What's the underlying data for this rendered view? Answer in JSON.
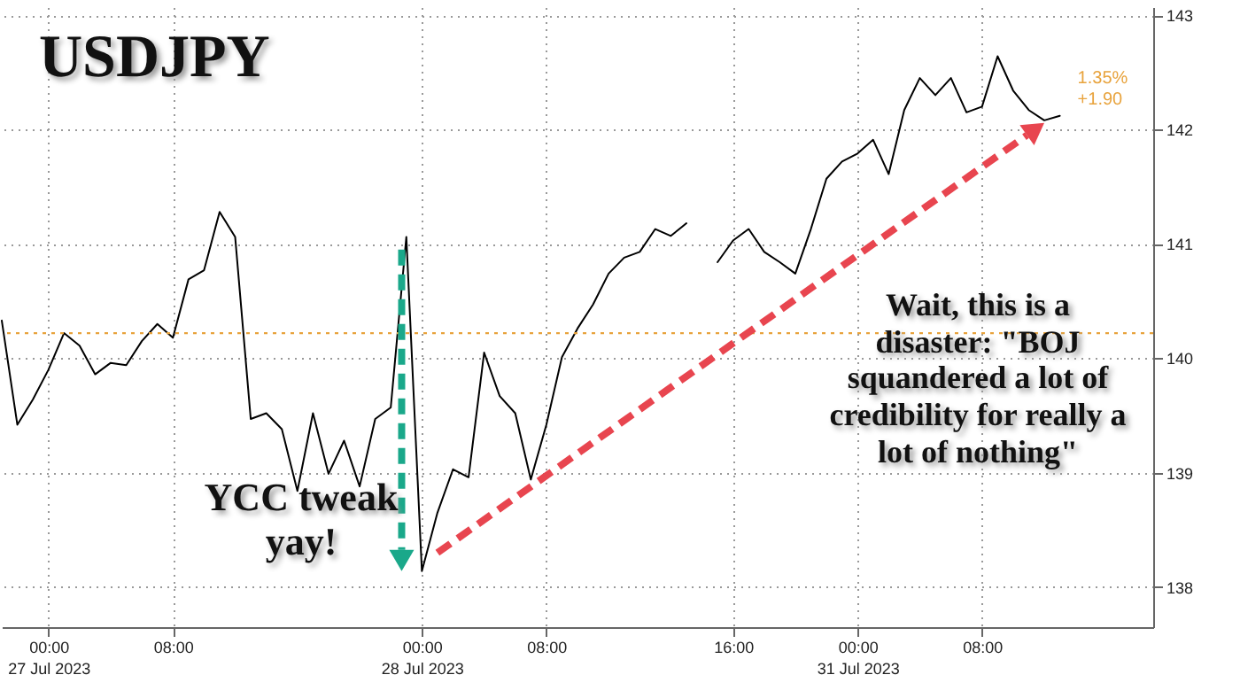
{
  "chart_data": {
    "type": "line",
    "title": "USDJPY",
    "annotations": [
      "1.35%",
      "+1.90",
      {
        "text": "YCC tweak yay!",
        "x": "00:00\n28 Jul 2023",
        "y": 138.14
      },
      "Wait, this is a disaster: \"BOJ squandered a lot of credibility for really a lot of nothing\""
    ],
    "categories": [
      null,
      null,
      null,
      "00:00\n27 Jul 2023",
      null,
      null,
      null,
      null,
      null,
      null,
      null,
      "08:00",
      null,
      null,
      null,
      null,
      null,
      null,
      null,
      null,
      null,
      null,
      null,
      null,
      null,
      null,
      null,
      "00:00\n28 Jul 2023",
      null,
      null,
      null,
      null,
      null,
      null,
      null,
      "08:00",
      null,
      null,
      null,
      null,
      null,
      null,
      null,
      null,
      null,
      null,
      null,
      "16:00",
      null,
      null,
      null,
      null,
      null,
      null,
      null,
      "00:00\n31 Jul 2023",
      null,
      null,
      null,
      null,
      null,
      null,
      null,
      "08:00",
      null,
      null,
      null,
      null,
      null,
      null,
      null,
      null,
      null,
      null,
      null
    ],
    "series": [
      {
        "color": "#000000",
        "values": [
          140.33,
          139.42,
          139.64,
          139.9,
          140.22,
          140.11,
          139.86,
          139.96,
          139.94,
          140.15,
          140.3,
          140.18,
          140.69,
          140.77,
          141.28,
          141.06,
          139.47,
          139.52,
          139.38,
          138.84,
          139.52,
          138.99,
          139.28,
          138.88,
          139.47,
          139.57,
          141.06,
          138.14,
          138.65,
          139.03,
          138.96,
          140.05,
          139.67,
          139.52,
          138.94,
          139.42,
          140.01,
          140.26,
          140.47,
          140.74,
          140.88,
          140.93,
          141.13,
          141.07,
          141.18,
          null,
          140.84,
          141.03,
          141.13,
          140.93,
          140.84,
          140.74,
          141.13,
          141.57,
          141.72,
          141.79,
          141.91,
          141.61,
          142.17,
          142.45,
          142.3,
          142.45,
          142.15,
          142.2,
          142.64,
          142.34,
          142.17,
          142.08,
          142.12,
          null,
          null,
          null,
          null,
          null,
          null
        ]
      }
    ],
    "ylim": [
      137.65,
      143.07
    ],
    "yticks": [
      138,
      139,
      140,
      141,
      142,
      143
    ],
    "ref_lines": [
      {
        "axis": "y",
        "value": 140.22,
        "label": null,
        "color": "#e8a33d",
        "line_style": "dotted"
      }
    ],
    "grid": true,
    "marker": "none",
    "line_style": "solid"
  }
}
